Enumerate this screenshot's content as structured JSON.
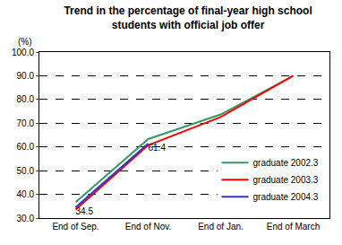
{
  "chart_data": {
    "type": "line",
    "title": "Trend in the percentage of final-year high school\nstudents with official job offer",
    "ylabel": "(%)",
    "categories": [
      "End of Sep.",
      "End of Nov.",
      "End of Jan.",
      "End of March"
    ],
    "series": [
      {
        "name": "graduate 2002.3",
        "color": "#339966",
        "values": [
          36.7,
          63.3,
          73.7,
          89.9
        ]
      },
      {
        "name": "graduate 2003.3",
        "color": "#ff0000",
        "values": [
          33.6,
          60.7,
          72.6,
          90.0
        ]
      },
      {
        "name": "graduate 2004.3",
        "color": "#3333cc",
        "values": [
          34.5,
          61.4,
          null,
          null
        ],
        "data_labels": true
      }
    ],
    "ylim": [
      30,
      100
    ],
    "yticks": [
      {
        "value": 30,
        "label": "30.0"
      },
      {
        "value": 40,
        "label": "40.0"
      },
      {
        "value": 50,
        "label": "50.0"
      },
      {
        "value": 60,
        "label": "60.0"
      },
      {
        "value": 70,
        "label": "70.0"
      },
      {
        "value": 80,
        "label": "80.0"
      },
      {
        "value": 90,
        "label": "90.0"
      },
      {
        "value": 100,
        "label": "100.0"
      }
    ],
    "grid": true,
    "legend": "lower right"
  }
}
